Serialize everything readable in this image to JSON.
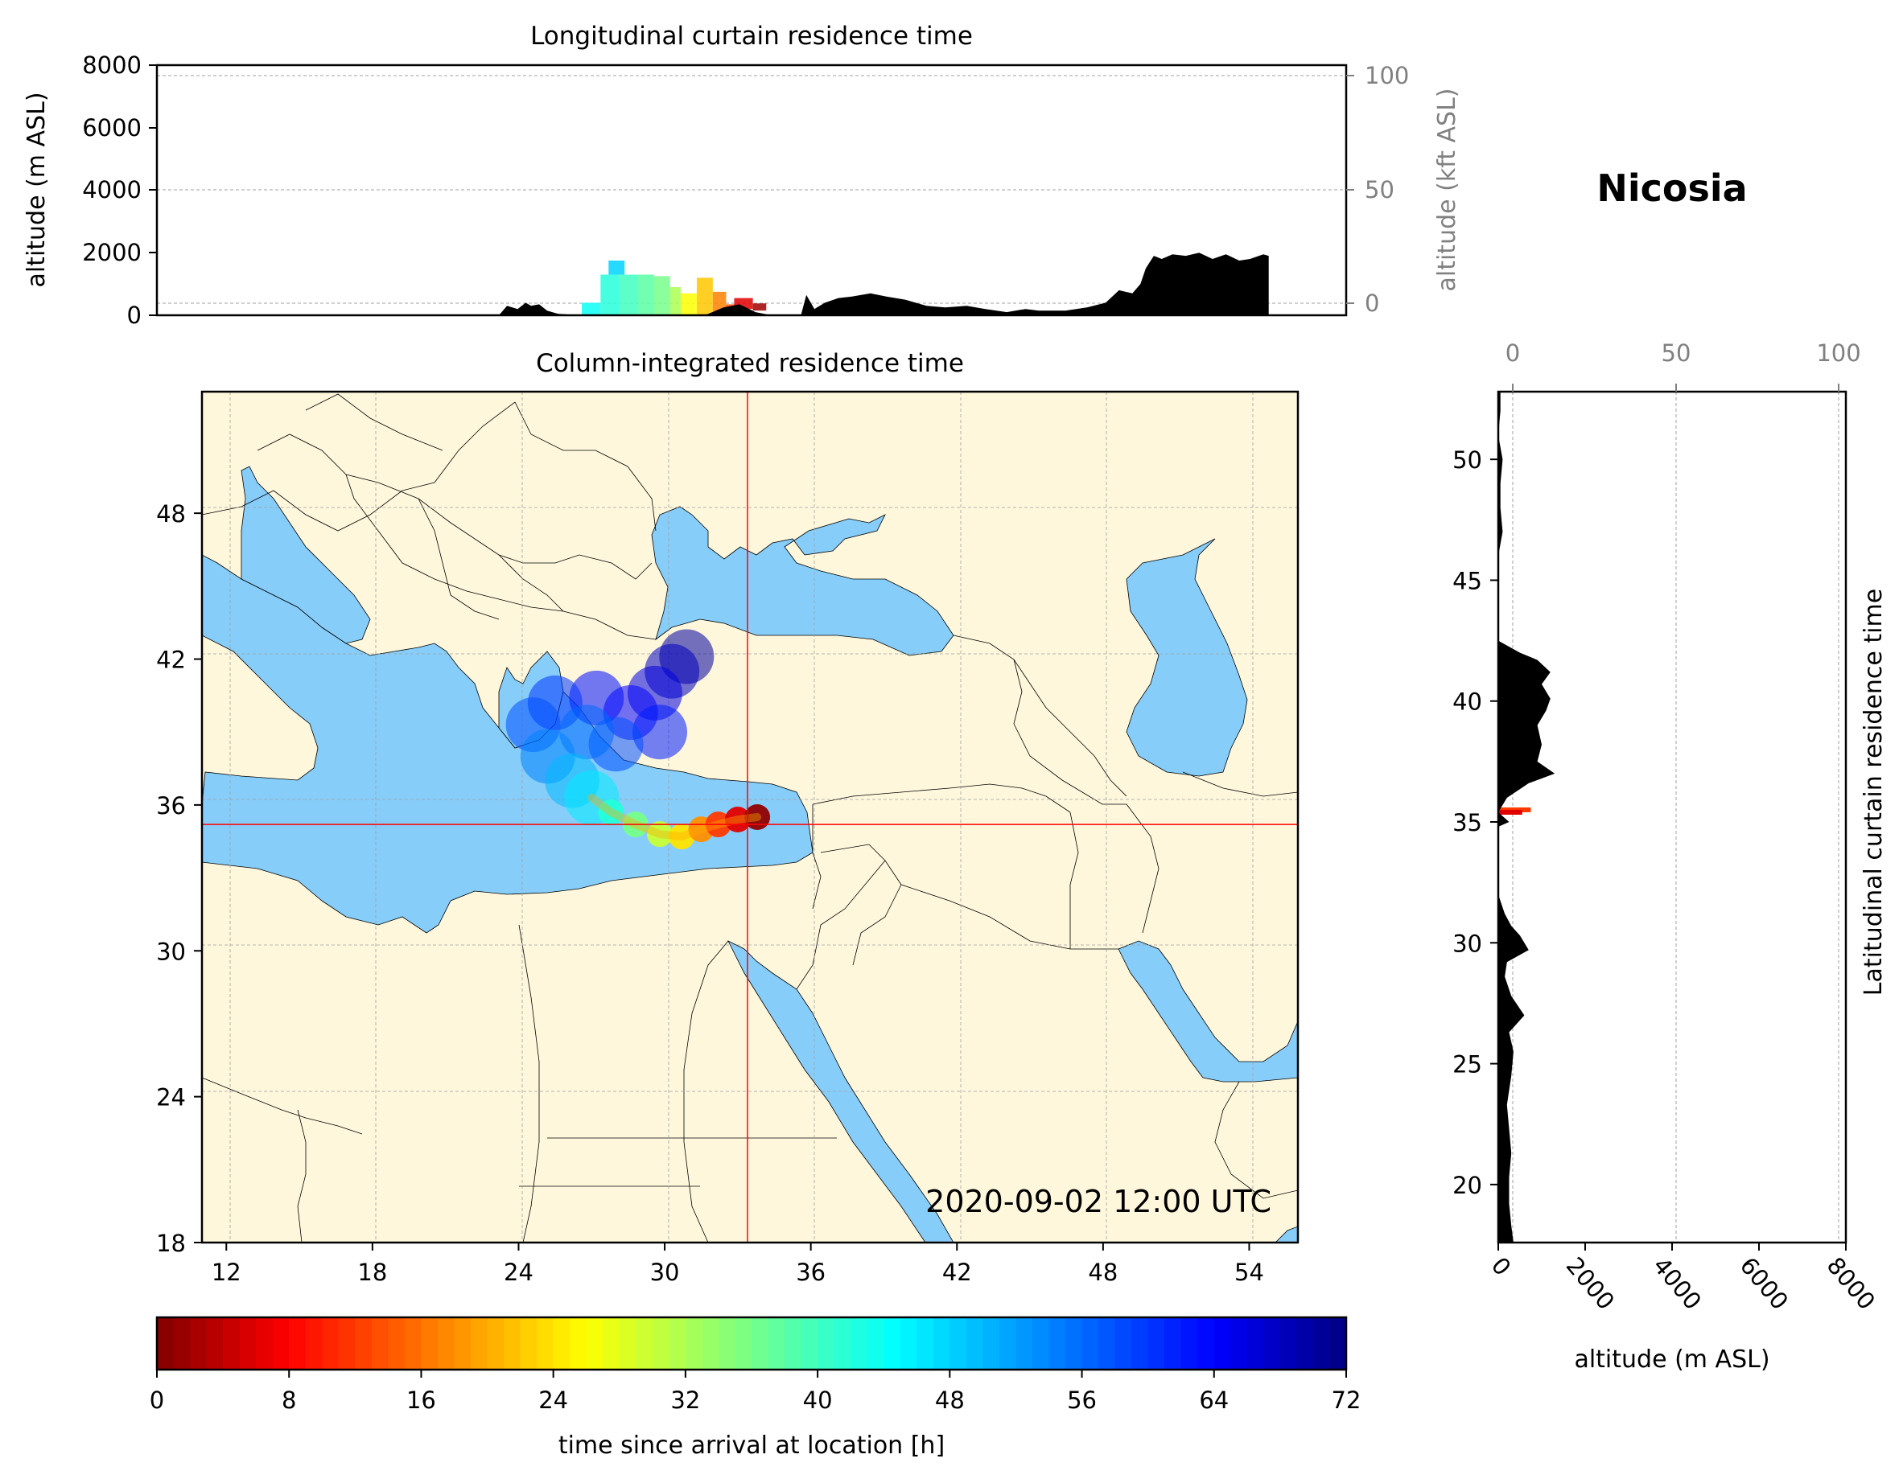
{
  "location_name": "Nicosia",
  "timestamp": "2020-09-02 12:00 UTC",
  "colors": {
    "land": "#fef7dc",
    "sea": "#87cdf9",
    "border": "#000000",
    "crosshair": "#ff0000",
    "terrain": "#000000"
  },
  "chart_data": [
    {
      "id": "longitudinal",
      "type": "area",
      "title": "Longitudinal curtain residence time",
      "ylabel": "altitude (m ASL)",
      "ylabel_right": "altitude (kft ASL)",
      "ylim": [
        0,
        8000
      ],
      "yticks": [
        "0",
        "2000",
        "4000",
        "6000",
        "8000"
      ],
      "yticks_right": [
        "0",
        "50",
        "100"
      ],
      "xlim": [
        11,
        55.5
      ],
      "terrain_series": {
        "name": "terrain",
        "x": [
          11,
          23.8,
          24.1,
          24.5,
          24.8,
          25.0,
          25.3,
          25.6,
          26.0,
          26.8,
          30.0,
          31.5,
          32.2,
          32.8,
          33.4,
          34.0,
          34.6,
          35.1,
          35.3,
          35.6,
          36.0,
          36.5,
          37.0,
          37.7,
          38.3,
          39.0,
          39.8,
          40.5,
          41.3,
          42.0,
          42.8,
          43.5,
          44.0,
          45.0,
          45.8,
          46.5,
          47.0,
          47.5,
          47.8,
          48.0,
          48.3,
          48.6,
          49.0,
          49.5,
          50.0,
          50.5,
          51.0,
          51.5,
          51.9,
          52.4,
          52.6,
          52.6
        ],
        "y": [
          0,
          0,
          300,
          200,
          400,
          300,
          350,
          150,
          50,
          0,
          0,
          0,
          250,
          350,
          100,
          0,
          0,
          0,
          650,
          200,
          400,
          550,
          600,
          700,
          600,
          500,
          300,
          250,
          300,
          200,
          100,
          200,
          150,
          150,
          250,
          400,
          800,
          700,
          1000,
          1500,
          1900,
          1800,
          1950,
          1900,
          2000,
          1800,
          1950,
          1750,
          1800,
          1950,
          1900,
          0
        ]
      },
      "plume_cells": [
        {
          "x0": 26.9,
          "x1": 27.6,
          "y0": 0,
          "y1": 400,
          "t": 44
        },
        {
          "x0": 27.6,
          "x1": 28.3,
          "y0": 0,
          "y1": 1300,
          "t": 42
        },
        {
          "x0": 28.3,
          "x1": 29.0,
          "y0": 0,
          "y1": 1300,
          "t": 40
        },
        {
          "x0": 29.0,
          "x1": 29.6,
          "y0": 0,
          "y1": 1300,
          "t": 38
        },
        {
          "x0": 29.6,
          "x1": 30.2,
          "y0": 0,
          "y1": 1250,
          "t": 36
        },
        {
          "x0": 30.2,
          "x1": 30.6,
          "y0": 0,
          "y1": 900,
          "t": 32
        },
        {
          "x0": 30.6,
          "x1": 31.2,
          "y0": 0,
          "y1": 700,
          "t": 26
        },
        {
          "x0": 31.2,
          "x1": 31.8,
          "y0": 0,
          "y1": 1200,
          "t": 22
        },
        {
          "x0": 31.8,
          "x1": 32.3,
          "y0": 0,
          "y1": 750,
          "t": 17
        },
        {
          "x0": 32.3,
          "x1": 32.7,
          "y0": 0,
          "y1": 350,
          "t": 13
        },
        {
          "x0": 27.9,
          "x1": 28.5,
          "y0": 1300,
          "y1": 1750,
          "t": 48
        },
        {
          "x0": 32.6,
          "x1": 33.3,
          "y0": 200,
          "y1": 550,
          "t": 6
        },
        {
          "x0": 33.3,
          "x1": 33.8,
          "y0": 150,
          "y1": 380,
          "t": 2
        }
      ]
    },
    {
      "id": "map",
      "type": "heatmap",
      "title": "Column-integrated residence time",
      "xticks": [
        "12",
        "18",
        "24",
        "30",
        "36",
        "42",
        "48",
        "54"
      ],
      "yticks": [
        "18",
        "24",
        "30",
        "36",
        "42",
        "48"
      ],
      "xlim": [
        11,
        56
      ],
      "ylim": [
        18,
        53
      ],
      "site": {
        "lon": 33.4,
        "lat": 35.2
      },
      "plume_points": [
        {
          "lon": 33.8,
          "lat": 35.5,
          "t": 1
        },
        {
          "lon": 33.0,
          "lat": 35.4,
          "t": 6
        },
        {
          "lon": 32.2,
          "lat": 35.2,
          "t": 12
        },
        {
          "lon": 31.5,
          "lat": 35.0,
          "t": 18
        },
        {
          "lon": 30.7,
          "lat": 34.7,
          "t": 24
        },
        {
          "lon": 29.8,
          "lat": 34.8,
          "t": 30
        },
        {
          "lon": 28.8,
          "lat": 35.2,
          "t": 36
        },
        {
          "lon": 27.8,
          "lat": 35.7,
          "t": 42
        },
        {
          "lon": 27.0,
          "lat": 36.3,
          "t": 46
        },
        {
          "lon": 26.2,
          "lat": 37.0,
          "t": 50
        },
        {
          "lon": 25.2,
          "lat": 38.0,
          "t": 54
        },
        {
          "lon": 24.6,
          "lat": 39.3,
          "t": 58
        },
        {
          "lon": 25.5,
          "lat": 40.2,
          "t": 60
        },
        {
          "lon": 26.8,
          "lat": 39.0,
          "t": 56
        },
        {
          "lon": 28.0,
          "lat": 38.5,
          "t": 58
        },
        {
          "lon": 27.2,
          "lat": 40.4,
          "t": 63
        },
        {
          "lon": 28.6,
          "lat": 39.8,
          "t": 64
        },
        {
          "lon": 29.6,
          "lat": 40.6,
          "t": 66
        },
        {
          "lon": 29.8,
          "lat": 39.0,
          "t": 62
        },
        {
          "lon": 30.3,
          "lat": 41.5,
          "t": 68
        },
        {
          "lon": 30.9,
          "lat": 42.1,
          "t": 70
        }
      ]
    },
    {
      "id": "latitudinal",
      "type": "area",
      "title": "Latitudinal curtain residence time",
      "xlabel": "altitude (m ASL)",
      "xlim": [
        0,
        8000
      ],
      "xticks": [
        "0",
        "2000",
        "4000",
        "6000",
        "8000"
      ],
      "xticks_top": [
        "0",
        "50",
        "100"
      ],
      "ylim": [
        17.6,
        52.8
      ],
      "yticks": [
        "20",
        "25",
        "30",
        "35",
        "40",
        "45",
        "50"
      ],
      "terrain_series": {
        "name": "terrain",
        "lat": [
          17.6,
          18.3,
          19.2,
          20.3,
          21.3,
          22.3,
          23.3,
          24.5,
          25.5,
          26.3,
          27.0,
          27.8,
          28.6,
          29.2,
          29.7,
          30.3,
          30.7,
          31.2,
          32.0,
          33.5,
          34.8,
          35.0,
          35.4,
          36.0,
          36.6,
          37.0,
          37.5,
          38.2,
          39.0,
          39.6,
          40.1,
          40.7,
          41.2,
          41.7,
          42.0,
          42.5,
          44.0,
          46.0,
          47.0,
          48.0,
          49.0,
          50.0,
          51.0,
          52.0,
          52.8
        ],
        "alt": [
          350,
          300,
          250,
          250,
          300,
          250,
          200,
          300,
          350,
          250,
          600,
          300,
          150,
          200,
          700,
          500,
          300,
          150,
          0,
          0,
          0,
          250,
          0,
          200,
          700,
          1300,
          900,
          1000,
          900,
          1100,
          1200,
          1000,
          1200,
          900,
          500,
          0,
          0,
          0,
          100,
          50,
          50,
          100,
          0,
          50,
          50
        ]
      },
      "plume_segments": [
        {
          "lat": 35.5,
          "x0": 0,
          "x1": 750,
          "t": 12
        },
        {
          "lat": 35.4,
          "x0": 0,
          "x1": 550,
          "t": 6
        }
      ]
    },
    {
      "id": "colorbar",
      "type": "heatmap",
      "label": "time since arrival at location [h]",
      "range": [
        0,
        72
      ],
      "ticks": [
        "0",
        "8",
        "16",
        "24",
        "32",
        "40",
        "48",
        "56",
        "64",
        "72"
      ]
    }
  ]
}
